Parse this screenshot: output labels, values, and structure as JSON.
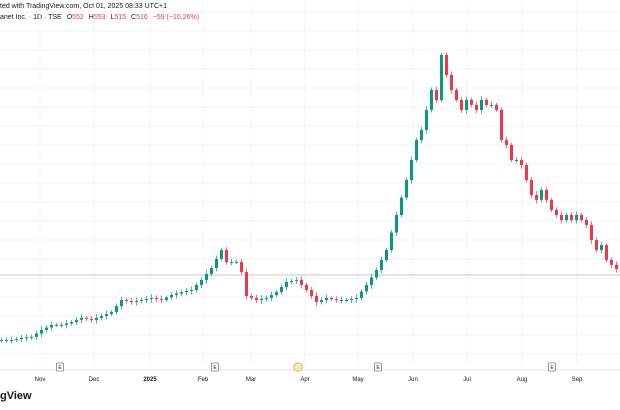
{
  "header": {
    "published": "ted with TradingView.com, Oct 01, 2025 08:33 UTC+1",
    "symbol": "anet Inc. · 1D · TSE",
    "open_label": "O",
    "open": "552",
    "high_label": "H",
    "high": "553",
    "low_label": "L",
    "low": "515",
    "close_label": "C",
    "close": "516",
    "change": "−59 (−10.26%)"
  },
  "logo": "gView",
  "colors": {
    "up": "#089981",
    "down": "#f23645",
    "grid": "#f0f3fa",
    "event": "#787b86",
    "split": "#ff9800",
    "last_price_line": "#b2b5be"
  },
  "chart_data": {
    "type": "candlestick",
    "interval": "1D",
    "last_close": 516,
    "ylim": [
      24,
      2207
    ],
    "grid": true,
    "x_ticks": [
      "Nov",
      "Dec",
      "2025",
      "Feb",
      "Mar",
      "Apr",
      "May",
      "Jun",
      "Jul",
      "Aug",
      "Sep"
    ],
    "events": [
      {
        "type": "earnings",
        "label": "E",
        "near": "Nov"
      },
      {
        "type": "earnings",
        "label": "E",
        "near": "Feb"
      },
      {
        "type": "split",
        "label": "S",
        "near": "Apr"
      },
      {
        "type": "earnings",
        "label": "E",
        "near": "May"
      },
      {
        "type": "earnings",
        "label": "E",
        "near": "Aug"
      }
    ],
    "closes": [
      116,
      116,
      116,
      122,
      129,
      132,
      135,
      156,
      178,
      193,
      209,
      209,
      209,
      218,
      227,
      240,
      252,
      245,
      239,
      252,
      264,
      276,
      288,
      325,
      362,
      356,
      350,
      356,
      362,
      368,
      375,
      368,
      362,
      378,
      393,
      402,
      411,
      418,
      424,
      455,
      485,
      522,
      559,
      615,
      670,
      596,
      596,
      596,
      534,
      387,
      375,
      362,
      368,
      375,
      393,
      411,
      442,
      473,
      479,
      485,
      455,
      424,
      387,
      350,
      362,
      375,
      368,
      362,
      362,
      362,
      368,
      375,
      415,
      455,
      501,
      547,
      608,
      670,
      777,
      885,
      992,
      1100,
      1223,
      1346,
      1408,
      1531,
      1654,
      1592,
      1869,
      1746,
      1654,
      1592,
      1531,
      1592,
      1562,
      1531,
      1592,
      1562,
      1562,
      1531,
      1346,
      1316,
      1223,
      1223,
      1192,
      1100,
      1008,
      978,
      1039,
      978,
      916,
      885,
      854,
      885,
      854,
      885,
      854,
      824,
      731,
      670,
      700,
      608,
      578,
      552,
      516
    ]
  }
}
